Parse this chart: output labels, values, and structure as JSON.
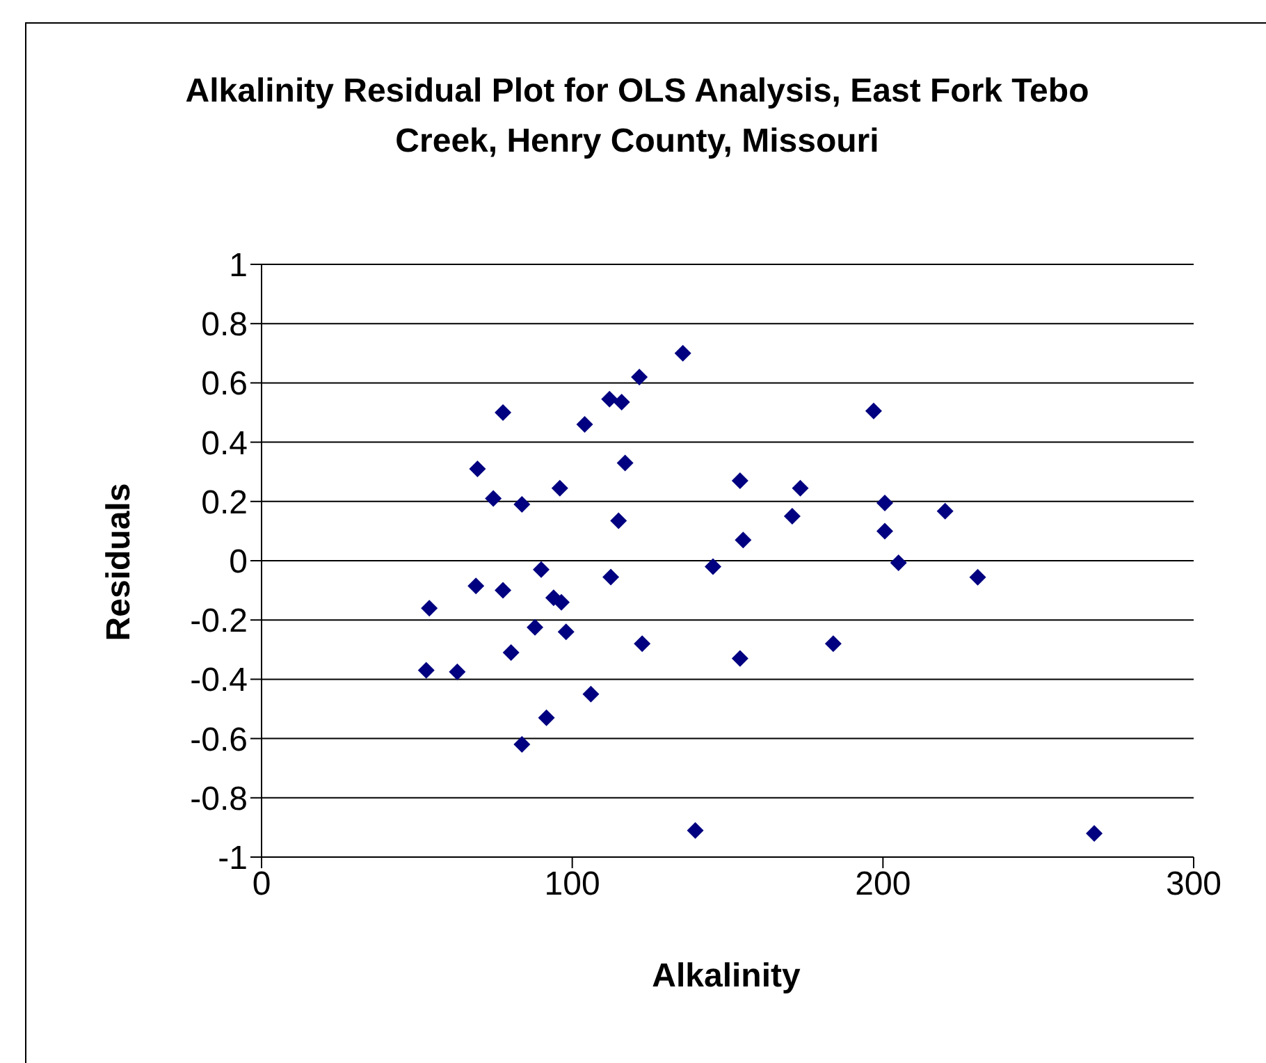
{
  "chart_data": {
    "type": "scatter",
    "title": "Alkalinity Residual Plot for OLS Analysis, East Fork Tebo Creek, Henry County, Missouri",
    "xlabel": "Alkalinity",
    "ylabel": "Residuals",
    "x": [
      54,
      53,
      63,
      69,
      69.5,
      74.6,
      77.7,
      77.7,
      80.3,
      83.8,
      83.8,
      88,
      90,
      91.7,
      94,
      96.5,
      96,
      98,
      104,
      106,
      112,
      112.4,
      114.9,
      115.9,
      117,
      121.6,
      122.5,
      135.6,
      139.6,
      145.3,
      154,
      154,
      155,
      170.8,
      173.4,
      184,
      197,
      200.6,
      200.6,
      205,
      220,
      230.5,
      268
    ],
    "series": [
      {
        "color": "#000080",
        "values": [
          -0.16,
          -0.37,
          -0.375,
          -0.085,
          0.31,
          0.21,
          0.5,
          -0.1,
          -0.31,
          0.19,
          -0.62,
          -0.225,
          -0.03,
          -0.53,
          -0.125,
          -0.14,
          0.245,
          -0.24,
          0.46,
          -0.45,
          0.545,
          -0.055,
          0.135,
          0.535,
          0.33,
          0.62,
          -0.28,
          0.7,
          -0.91,
          -0.02,
          0.27,
          -0.33,
          0.07,
          0.15,
          0.245,
          -0.28,
          0.505,
          0.195,
          0.1,
          -0.007,
          0.167,
          -0.056,
          -0.92
        ]
      }
    ],
    "xlim": [
      0,
      300
    ],
    "xticks": [
      0,
      100,
      200,
      300
    ],
    "ylim": [
      -1,
      1
    ],
    "yticks": [
      -1,
      -0.8,
      -0.6,
      -0.4,
      -0.2,
      0,
      0.2,
      0.4,
      0.6,
      0.8,
      1
    ],
    "grid": "y",
    "marker": "diamond",
    "legend": false
  }
}
